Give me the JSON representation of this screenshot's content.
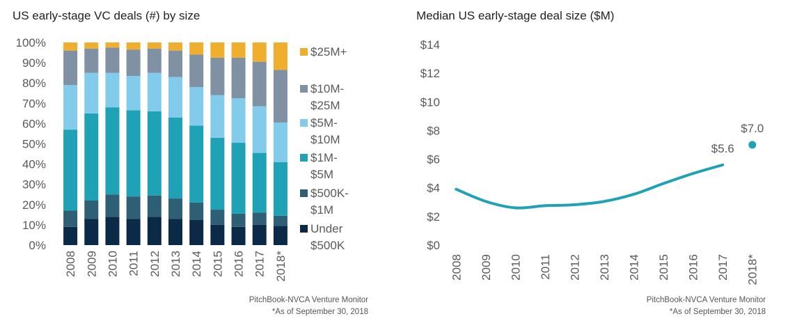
{
  "chart_data": [
    {
      "type": "bar",
      "stacked": true,
      "title": "US early-stage VC deals (#) by size",
      "categories": [
        "2008",
        "2009",
        "2010",
        "2011",
        "2012",
        "2013",
        "2014",
        "2015",
        "2016",
        "2017",
        "2018*"
      ],
      "ylim": [
        0,
        100
      ],
      "yticks": [
        "0%",
        "10%",
        "20%",
        "30%",
        "40%",
        "50%",
        "60%",
        "70%",
        "80%",
        "90%",
        "100%"
      ],
      "legend_position": "right",
      "series": [
        {
          "name": "Under $500K",
          "legend_lines": [
            "Under",
            "$500K"
          ],
          "color": "#0b2a48",
          "values": [
            9,
            13,
            14,
            13,
            14,
            13,
            12.5,
            10,
            9,
            10,
            9.5
          ]
        },
        {
          "name": "$500K-$1M",
          "legend_lines": [
            "$500K-",
            "$1M"
          ],
          "color": "#2f5f74",
          "values": [
            8,
            9,
            11,
            11,
            10.5,
            10,
            8.5,
            7.5,
            6.5,
            6,
            5
          ]
        },
        {
          "name": "$1M-$5M",
          "legend_lines": [
            "$1M-",
            "$5M"
          ],
          "color": "#1fa2b5",
          "values": [
            40,
            43,
            43,
            42.5,
            41.5,
            40,
            38,
            35.5,
            35,
            29.5,
            26.5
          ]
        },
        {
          "name": "$5M-$10M",
          "legend_lines": [
            "$5M-",
            "$10M"
          ],
          "color": "#83cbea",
          "values": [
            22,
            20,
            17,
            17,
            19,
            20,
            19,
            21,
            22,
            23,
            19.5
          ]
        },
        {
          "name": "$10M-$25M",
          "legend_lines": [
            "$10M-",
            "$25M"
          ],
          "color": "#7f91a3",
          "values": [
            17,
            12,
            12.5,
            13,
            12,
            13,
            16,
            18.5,
            20,
            22,
            26
          ]
        },
        {
          "name": "$25M+",
          "legend_lines": [
            "$25M+"
          ],
          "color": "#f0ae2e",
          "values": [
            4,
            3,
            2.5,
            3.5,
            3,
            4,
            6,
            7.5,
            7.5,
            9.5,
            13.5
          ]
        }
      ],
      "source": "PitchBook-NVCA Venture Monitor",
      "note": "*As of September 30, 2018"
    },
    {
      "type": "line",
      "title": "Median US early-stage deal size ($M)",
      "x": [
        "2008",
        "2009",
        "2010",
        "2011",
        "2012",
        "2013",
        "2014",
        "2015",
        "2016",
        "2017",
        "2018*"
      ],
      "ylim": [
        0,
        14
      ],
      "yticks": [
        "$0",
        "$2",
        "$4",
        "$6",
        "$8",
        "$10",
        "$12",
        "$14"
      ],
      "color": "#1fa2b5",
      "line_values": [
        3.9,
        3.05,
        2.6,
        2.75,
        2.82,
        3.05,
        3.55,
        4.3,
        5.0,
        5.6
      ],
      "point": {
        "x": "2018*",
        "value": 7.0
      },
      "data_labels": [
        {
          "x": "2017",
          "text": "$5.6"
        },
        {
          "x": "2018*",
          "text": "$7.0"
        }
      ],
      "source": "PitchBook-NVCA Venture Monitor",
      "note": "*As of September 30, 2018"
    }
  ]
}
